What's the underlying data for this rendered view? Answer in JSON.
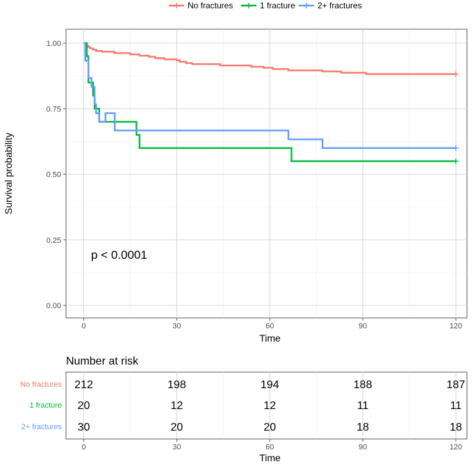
{
  "chart_data": [
    {
      "type": "line",
      "subtype": "kaplan-meier",
      "title": "",
      "xlabel": "Time",
      "ylabel": "Survival probability",
      "xlim": [
        -5,
        121
      ],
      "ylim": [
        -0.05,
        1.05
      ],
      "x_ticks": [
        0,
        30,
        60,
        90,
        120
      ],
      "y_ticks": [
        0,
        0.25,
        0.5,
        0.75,
        1.0
      ],
      "y_tick_labels": [
        "0.00",
        "0.25",
        "0.50",
        "0.75",
        "1.00"
      ],
      "grid": true,
      "legend_position": "top",
      "annotation": "p < 0.0001",
      "series": [
        {
          "name": "No fractures",
          "color": "#F8766D",
          "steps": [
            [
              0,
              1.0
            ],
            [
              0.5,
              0.995
            ],
            [
              1,
              0.99
            ],
            [
              1.5,
              0.985
            ],
            [
              2,
              0.98
            ],
            [
              3,
              0.975
            ],
            [
              4,
              0.97
            ],
            [
              6,
              0.967
            ],
            [
              10,
              0.962
            ],
            [
              15,
              0.957
            ],
            [
              18,
              0.952
            ],
            [
              21,
              0.948
            ],
            [
              23,
              0.943
            ],
            [
              26,
              0.938
            ],
            [
              30,
              0.934
            ],
            [
              31,
              0.929
            ],
            [
              33,
              0.924
            ],
            [
              35,
              0.92
            ],
            [
              44,
              0.915
            ],
            [
              54,
              0.91
            ],
            [
              58,
              0.906
            ],
            [
              61,
              0.901
            ],
            [
              66,
              0.896
            ],
            [
              77,
              0.892
            ],
            [
              83,
              0.887
            ],
            [
              91,
              0.882
            ],
            [
              120,
              0.882
            ]
          ],
          "censor": [
            [
              120,
              0.882
            ]
          ]
        },
        {
          "name": "1 fracture",
          "color": "#00BA38",
          "steps": [
            [
              0,
              1.0
            ],
            [
              1,
              0.95
            ],
            [
              1.5,
              0.85
            ],
            [
              3,
              0.8
            ],
            [
              3.5,
              0.75
            ],
            [
              5,
              0.7
            ],
            [
              17,
              0.65
            ],
            [
              18,
              0.6
            ],
            [
              67,
              0.55
            ],
            [
              120,
              0.55
            ]
          ],
          "censor": [
            [
              120,
              0.55
            ]
          ]
        },
        {
          "name": "2+ fractures",
          "color": "#619CFF",
          "steps": [
            [
              0,
              1.0
            ],
            [
              0.5,
              0.933
            ],
            [
              1.5,
              0.867
            ],
            [
              2.5,
              0.833
            ],
            [
              3.5,
              0.767
            ],
            [
              4,
              0.733
            ],
            [
              5,
              0.7
            ],
            [
              7,
              0.733
            ],
            [
              10,
              0.667
            ],
            [
              66,
              0.633
            ],
            [
              77,
              0.6
            ],
            [
              120,
              0.6
            ]
          ],
          "censor": [
            [
              120,
              0.6
            ]
          ]
        }
      ]
    },
    {
      "type": "table",
      "title": "Number at risk",
      "xlabel": "Time",
      "x_ticks": [
        0,
        30,
        60,
        90,
        120
      ],
      "rows": [
        {
          "label": "No fractures",
          "color": "#F8766D",
          "values": [
            212,
            198,
            194,
            188,
            187
          ]
        },
        {
          "label": "1 fracture",
          "color": "#00BA38",
          "values": [
            20,
            12,
            12,
            11,
            11
          ]
        },
        {
          "label": "2+ fractures",
          "color": "#619CFF",
          "values": [
            30,
            20,
            20,
            18,
            18
          ]
        }
      ]
    }
  ]
}
